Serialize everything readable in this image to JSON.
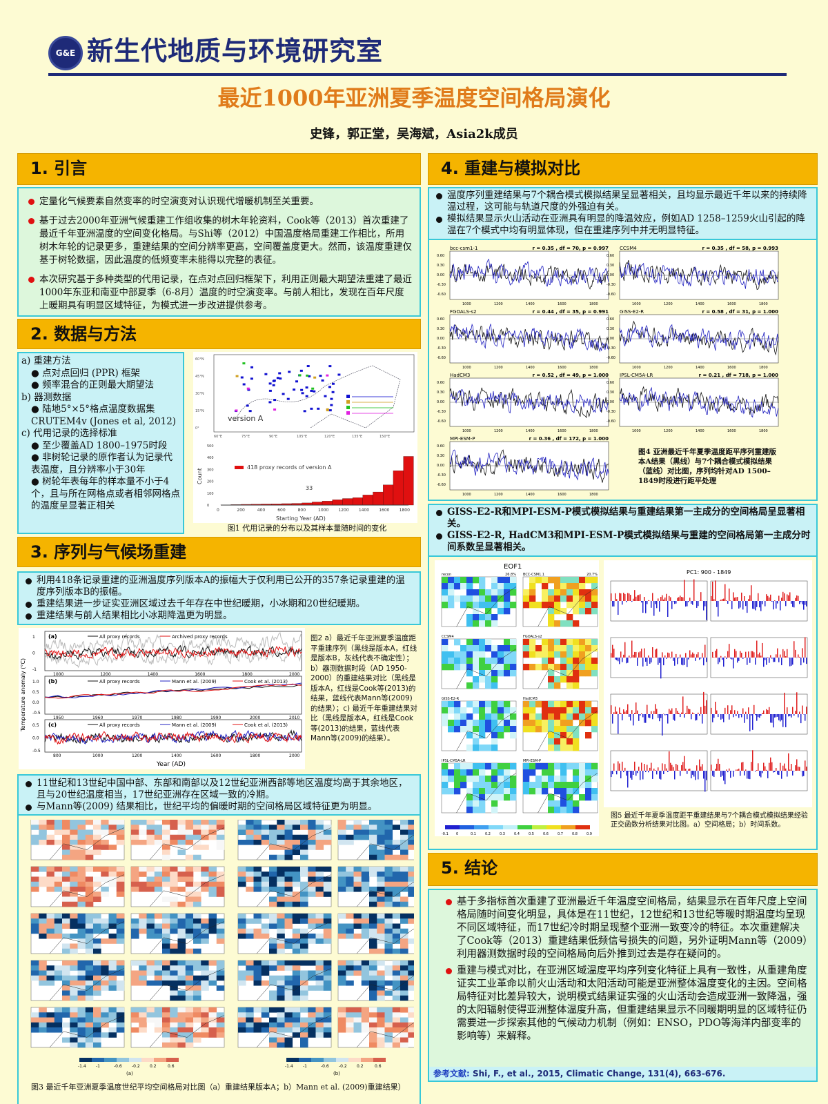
{
  "header": {
    "logo_text": "G&E",
    "lab_name": "新生代地质与环境研究室",
    "title": "最近1000年亚洲夏季温度空间格局演化",
    "authors": "史锋，郭正堂，吴海斌，Asia2k成员"
  },
  "colors": {
    "accent": "#e07b1a",
    "navy": "#1e2a78",
    "section_header": "#f5b400",
    "red": "#e01010",
    "blue": "#2020c0"
  },
  "s1": {
    "heading": "1. 引言",
    "bullets": [
      "定量化气候要素自然变率的时空演变对认识现代增暖机制至关重要。",
      "基于过去2000年亚洲气候重建工作组收集的树木年轮资料，Cook等（2013）首次重建了最近千年亚洲温度的空间变化格局。与Shi等（2012）中国温度格局重建工作相比，所用树木年轮的记录更多，重建结果的空间分辨率更高，空间覆盖度更大。然而，该温度重建仅基于树轮数据，因此温度的低频变率未能得以完整的表征。",
      "本次研究基于多种类型的代用记录，在点对点回归框架下，利用正则最大期望法重建了最近1000年东亚和南亚中部夏季（6-8月）温度的时空演变率。与前人相比，发现在百年尺度上暖期具有明显区域特征，为模式进一步改进提供参考。"
    ]
  },
  "s2": {
    "heading": "2. 数据与方法",
    "items": [
      {
        "t": "a)  重建方法",
        "k": "h"
      },
      {
        "t": "点对点回归 (PPR) 框架",
        "k": "b"
      },
      {
        "t": "频率混合的正则最大期望法",
        "k": "b"
      },
      {
        "t": "b)  器测数据",
        "k": "h"
      },
      {
        "t": "陆地5°×5°格点温度数据集CRUTEM4v (Jones et al, 2012)",
        "k": "b"
      },
      {
        "t": "c)  代用记录的选择标准",
        "k": "h"
      },
      {
        "t": "至少覆盖AD 1800–1975时段",
        "k": "b"
      },
      {
        "t": "非树轮记录的原作者认为记录代表温度，且分辨率小于30年",
        "k": "b"
      },
      {
        "t": "树轮年表每年的样本量不小于4个，且与所在网格点或者相邻网格点的温度呈显著正相关",
        "k": "b"
      }
    ],
    "fig1": {
      "map_label": "version A",
      "lat_ticks": [
        "60°N",
        "45°N",
        "30°N",
        "15°N",
        "0°"
      ],
      "lon_ticks": [
        "60°E",
        "75°E",
        "90°E",
        "105°E",
        "120°E",
        "135°E",
        "150°E"
      ],
      "bar": {
        "ylabel": "Count",
        "xlabel": "Starting Year (AD)",
        "legend": "418 proxy records of version A",
        "annotation": "33",
        "xticks": [
          "0",
          "200",
          "400",
          "600",
          "800",
          "1000",
          "1200",
          "1400",
          "1600",
          "1800"
        ],
        "yticks": [
          "0",
          "100",
          "200",
          "300",
          "400",
          "500"
        ],
        "ylim": [
          0,
          500
        ],
        "x": [
          0,
          100,
          200,
          300,
          400,
          500,
          600,
          700,
          800,
          900,
          1000,
          1100,
          1200,
          1300,
          1400,
          1500,
          1600,
          1700,
          1800
        ],
        "values": [
          2,
          4,
          6,
          8,
          9,
          10,
          12,
          14,
          18,
          26,
          33,
          45,
          55,
          62,
          85,
          110,
          170,
          290,
          410
        ]
      },
      "caption": "图1 代用记录的分布以及其样本量随时间的变化"
    }
  },
  "s3": {
    "heading": "3. 序列与气候场重建",
    "bullets": [
      "利用418条记录重建的亚洲温度序列版本A的振幅大于仅利用已公开的357条记录重建的温度序列版本B的振幅。",
      "重建结果进一步证实亚洲区域过去千年存在中世纪暖期，小冰期和20世纪暖期。",
      "重建结果与前人结果相比小冰期降温更为明显。"
    ],
    "fig2": {
      "ylabel": "Temperature anomaly (°C)",
      "xlabel": "Year (AD)",
      "panels": [
        {
          "tag": "(a)",
          "legend": [
            "All proxy records",
            "Archived proxy records"
          ],
          "yticks": [
            "1",
            "0",
            "-1"
          ],
          "xticks": [
            "1000",
            "1200",
            "1400",
            "1600",
            "1800",
            "2000"
          ]
        },
        {
          "tag": "(b)",
          "legend": [
            "All proxy records",
            "Mann et al. (2009)",
            "Cook et al. (2013)"
          ],
          "yticks": [
            "1.0",
            "0.5",
            "0.0",
            "-0.5"
          ],
          "xticks": [
            "1950",
            "1960",
            "1970",
            "1980",
            "1990",
            "2000",
            "2010"
          ]
        },
        {
          "tag": "(c)",
          "legend": [
            "All proxy records",
            "Mann et al. (2009)",
            "Cook et al. (2013)"
          ],
          "yticks": [
            "0.5",
            "0.0",
            "-0.5"
          ],
          "xticks": [
            "800",
            "1000",
            "1200",
            "1400",
            "1600",
            "1800",
            "2000"
          ]
        }
      ],
      "caption": "图2 a）最近千年亚洲夏季温度距平重建序列（黑线是版本A，红线是版本B，灰线代表不确定性）；b）器测数据时段（AD 1950-2000）的重建结果对比（黑线是版本A，红线是Cook等(2013)的结果，蓝线代表Mann等(2009)的结果）；c) 最近千年重建结果对比（黑线是版本A，红线是Cook等(2013)的结果，蓝线代表Mann等(2009)的结果）。"
    },
    "bullets2": [
      "11世纪和13世纪中国中部、东部和南部以及12世纪亚洲西部等地区温度均高于其余地区，且与20世纪温度相当，17世纪亚洲存在区域一致的冷期。",
      "与Mann等(2009) 结果相比，世纪平均的偏暖时期的空间格局区域特征更为明显。"
    ],
    "fig3": {
      "colorbar_ticks": [
        "-1.4",
        "-1",
        "-0.6",
        "-0.2",
        "0.2",
        "0.6"
      ],
      "panel_labels": [
        "(a)",
        "(b)"
      ],
      "caption": "图3 最近千年亚洲夏季温度世纪平均空间格局对比图（a）重建结果版本A；b）Mann et al. (2009)重建结果）"
    }
  },
  "s4": {
    "heading": "4. 重建与模拟对比",
    "bullets": [
      "温度序列重建结果与7个耦合模式模拟结果呈显著相关，且均显示最近千年以来的持续降温过程，这可能与轨道尺度的外强迫有关。",
      "模拟结果显示火山活动在亚洲具有明显的降温效应，例如AD 1258–1259火山引起的降温在7个模式中均有明显体现，但在重建序列中并无明显特征。"
    ],
    "fig4": {
      "yticks": [
        "0.60",
        "0.30",
        "0.00",
        "-0.30",
        "-0.60"
      ],
      "xticks": [
        "1000",
        "1200",
        "1400",
        "1600",
        "1800"
      ],
      "panels": [
        {
          "model": "bcc-csm1-1",
          "stats": "r = 0.35 , df = 70, p = 0.997"
        },
        {
          "model": "CCSM4",
          "stats": "r = 0.35 , df = 58, p = 0.993"
        },
        {
          "model": "FGOALS-s2",
          "stats": "r = 0.44 , df = 35, p = 0.991"
        },
        {
          "model": "GISS-E2-R",
          "stats": "r = 0.58 , df = 31, p = 1.000"
        },
        {
          "model": "HadCM3",
          "stats": "r = 0.52 , df = 49, p = 1.000"
        },
        {
          "model": "IPSL-CM5A-LR",
          "stats": "r = 0.21 , df = 718, p = 1.000"
        },
        {
          "model": "MPI-ESM-P",
          "stats": "r = 0.36 , df = 172, p = 1.000"
        }
      ],
      "caption": "图4 亚洲最近千年夏季温度距平序列重建版本A结果（黑线）与7个耦合模式模拟结果（蓝线）对比图，序列均针对AD 1500–1849时段进行距平处理"
    },
    "bullets2": [
      "GISS-E2-R和MPI-ESM-P模式模拟结果与重建结果第一主成分的空间格局呈显著相关。",
      "GISS-E2-R, HadCM3和MPI-ESM-P模式模拟结果与重建的空间格局第一主成分时间系数呈显著相关。"
    ],
    "fig5": {
      "eof_title": "EOF1",
      "pc_title": "PC1: 900 - 1849",
      "maps": [
        {
          "name": "recon",
          "pct": "26.8%"
        },
        {
          "name": "BCC-CSM1.1",
          "pct": "20.7%"
        },
        {
          "name": "CCSM4",
          "pct": ""
        },
        {
          "name": "FGOALS-s2",
          "pct": ""
        },
        {
          "name": "GISS-E2-R",
          "pct": ""
        },
        {
          "name": "HadCM3",
          "pct": ""
        },
        {
          "name": "IPSL-CM5A-LR",
          "pct": ""
        },
        {
          "name": "MPI-ESM-P",
          "pct": ""
        }
      ],
      "colorbar_ticks": [
        "-0.1",
        "0",
        "0.1",
        "0.2",
        "0.3",
        "0.4",
        "0.5",
        "0.6",
        "0.7",
        "0.8",
        "0.9"
      ],
      "caption": "图5 最近千年夏季温度距平重建结果与7个耦合模式模拟结果经验正交函数分析结果对比图。a）空间格局；b）时间系数。"
    }
  },
  "s5": {
    "heading": "5. 结论",
    "bullets": [
      "基于多指标首次重建了亚洲最近千年温度空间格局，结果显示在百年尺度上空间格局随时间变化明显，具体是在11世纪，12世纪和13世纪等暖时期温度均呈现不同区域特征，而17世纪冷时期呈现整个亚洲一致变冷的特征。本次重建解决了Cook等（2013）重建结果低频信号损失的问题，另外证明Mann等（2009）利用器测数据时段的空间格局向后外推到过去是存在疑问的。",
      "重建与模式对比，在亚洲区域温度平均序列变化特征上具有一致性，从重建角度证实工业革命以前火山活动和太阳活动可能是亚洲整体温度变化的主因。空间格局特征对比差异较大，说明模式结果证实强的火山活动会造成亚洲一致降温，强的太阳辐射使得亚洲整体温度升高，但重建结果显示不同暖期明显的区域特征仍需要进一步探索其他的气候动力机制（例如：ENSO，PDO等海洋内部变率的影响等）来解释。"
    ],
    "ref_label": "参考文献:",
    "ref_text": " Shi, F., et al., 2015, Climatic Change, 131(4), 663-676."
  }
}
